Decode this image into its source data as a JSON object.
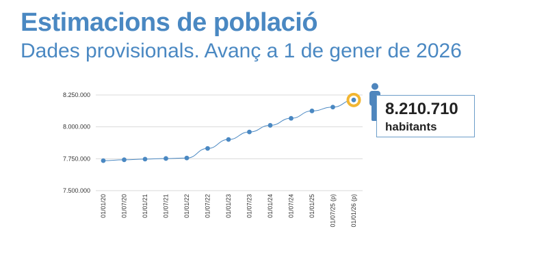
{
  "header": {
    "title": "Estimacions de població",
    "subtitle": "Dades provisionals. Avanç a 1 de gener de 2026"
  },
  "callout": {
    "value": "8.210.710",
    "unit": "habitants",
    "icon": "person-icon"
  },
  "colors": {
    "title": "#4a88c2",
    "line": "#4a88c2",
    "point": "#4a88c2",
    "highlight_ring": "#f2b632",
    "grid": "#d9d9d9",
    "icon": "#4f86bd"
  },
  "chart_data": {
    "type": "line",
    "title": "",
    "xlabel": "",
    "ylabel": "",
    "ylim": [
      7500000,
      8250000
    ],
    "y_ticks": [
      7500000,
      7750000,
      8000000,
      8250000
    ],
    "y_tick_labels": [
      "7.500.000",
      "7.750.000",
      "8.000.000",
      "8.250.000"
    ],
    "grid": true,
    "x": [
      "01/01/20",
      "01/07/20",
      "01/01/21",
      "01/07/21",
      "01/01/22",
      "01/07/22",
      "01/01/23",
      "01/07/23",
      "01/01/24",
      "01/07/24",
      "01/01/25",
      "01/07/25 (p)",
      "01/01/26 (p)"
    ],
    "series": [
      {
        "values": [
          7735000,
          7742000,
          7747000,
          7752000,
          7756000,
          7831000,
          7901000,
          7960000,
          8012000,
          8067000,
          8125000,
          8155000,
          8210710
        ]
      }
    ],
    "highlight_index": 12
  }
}
